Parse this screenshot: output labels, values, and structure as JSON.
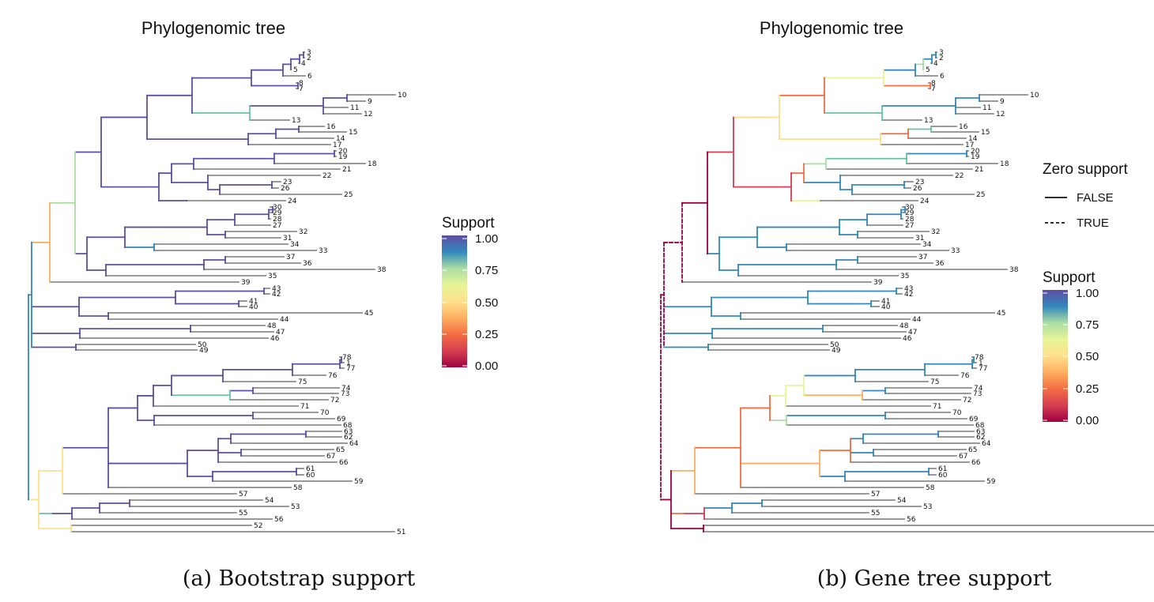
{
  "panels": [
    {
      "title": "Phylogenomic tree",
      "caption": "(a) Bootstrap support",
      "support_legend": {
        "title": "Support",
        "ticks": [
          "1.00",
          "0.75",
          "0.50",
          "0.25",
          "0.00"
        ]
      }
    },
    {
      "title": "Phylogenomic tree",
      "caption": "(b) Gene tree support",
      "zero_legend": {
        "title": "Zero support",
        "items": [
          {
            "label": "FALSE",
            "style": "solid"
          },
          {
            "label": "TRUE",
            "style": "dashed"
          }
        ]
      },
      "support_legend": {
        "title": "Support",
        "ticks": [
          "1.00",
          "0.75",
          "0.50",
          "0.25",
          "0.00"
        ]
      }
    }
  ],
  "tips": [
    "3",
    "2",
    "4",
    "5",
    "6",
    "8",
    "7",
    "10",
    "9",
    "11",
    "12",
    "13",
    "16",
    "15",
    "14",
    "17",
    "20",
    "19",
    "18",
    "21",
    "22",
    "23",
    "26",
    "25",
    "24",
    "30",
    "29",
    "28",
    "27",
    "32",
    "31",
    "34",
    "33",
    "37",
    "36",
    "38",
    "35",
    "39",
    "43",
    "42",
    "41",
    "40",
    "45",
    "44",
    "48",
    "47",
    "46",
    "50",
    "49",
    "78",
    "1",
    "77",
    "76",
    "75",
    "74",
    "73",
    "72",
    "71",
    "70",
    "69",
    "68",
    "63",
    "62",
    "64",
    "65",
    "67",
    "66",
    "61",
    "60",
    "59",
    "58",
    "57",
    "54",
    "53",
    "55",
    "56",
    "52",
    "51"
  ],
  "tree_newick": "(((((((((((3,2),4),5),6),(8,7)),((((10,9),11),12),13)),(((16,15),14),17)),((((20,19),18),21),(22,((23,26),25)),24)),(((((30,29),28),27),(32,31)),(34,33)),((37,36),38),35)),39),((43,42),(41,40)),(45,44)),((48,47),46)),(50,49)),((((((((78,1),77),76),75),((74,73),72)),71),((70,69),68)),((((63,62),64),(65,67),66),(61,60),59),58),57),(((54,53),55),56),52),51);",
  "colors": {
    "tip_branch": "#8c8c8c",
    "scale": [
      "#9e0142",
      "#f46d43",
      "#fdae61",
      "#fee08b",
      "#e6f598",
      "#abdda4",
      "#66c2a5",
      "#3288bd",
      "#5e4fa2"
    ]
  }
}
